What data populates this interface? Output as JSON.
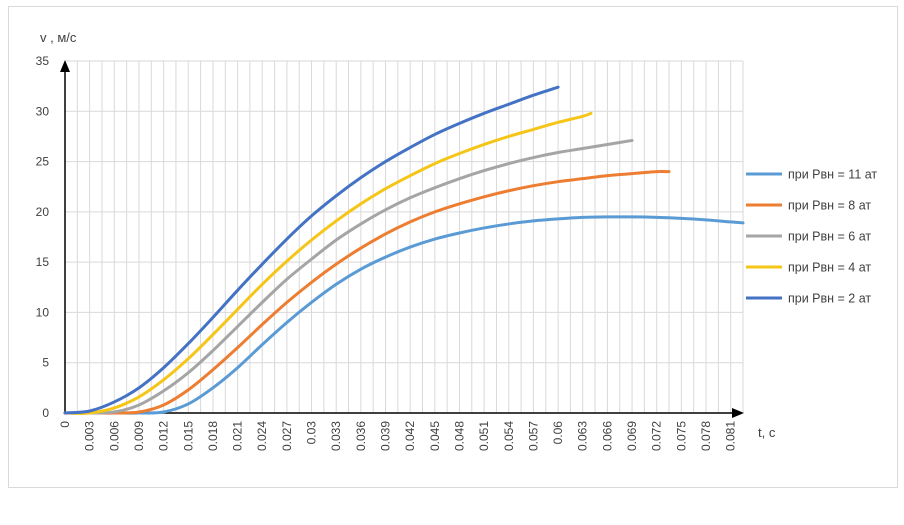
{
  "chart_data": {
    "type": "line",
    "title": "",
    "xlabel": "t, с",
    "ylabel": "v , м/с",
    "ylim": [
      0,
      35
    ],
    "xlim": [
      0,
      0.0825
    ],
    "y_ticks": [
      "0",
      "5",
      "10",
      "15",
      "20",
      "25",
      "30",
      "35"
    ],
    "x_ticks": [
      "0",
      "0.003",
      "0.006",
      "0.009",
      "0.012",
      "0.015",
      "0.018",
      "0.021",
      "0.024",
      "0.027",
      "0.03",
      "0.033",
      "0.036",
      "0.039",
      "0.042",
      "0.045",
      "0.048",
      "0.051",
      "0.054",
      "0.057",
      "0.06",
      "0.063",
      "0.066",
      "0.069",
      "0.072",
      "0.075",
      "0.078",
      "0.081"
    ],
    "grid": true,
    "legend_position": "right",
    "series": [
      {
        "name": "при Рвн = 11 ат",
        "color": "#5b9bd5",
        "x": [
          0,
          0.003,
          0.006,
          0.009,
          0.012,
          0.015,
          0.018,
          0.021,
          0.024,
          0.027,
          0.03,
          0.033,
          0.036,
          0.039,
          0.042,
          0.045,
          0.048,
          0.051,
          0.054,
          0.057,
          0.06,
          0.063,
          0.066,
          0.069,
          0.072,
          0.075,
          0.078,
          0.081,
          0.0825
        ],
        "y": [
          0,
          0,
          0,
          0,
          0.1,
          0.9,
          2.5,
          4.5,
          6.8,
          9.0,
          11.0,
          12.8,
          14.3,
          15.5,
          16.5,
          17.3,
          17.9,
          18.4,
          18.8,
          19.1,
          19.3,
          19.45,
          19.5,
          19.5,
          19.45,
          19.35,
          19.2,
          19.0,
          18.9
        ]
      },
      {
        "name": "при Рвн = 8 ат",
        "color": "#ed7d31",
        "x": [
          0,
          0.003,
          0.006,
          0.009,
          0.012,
          0.015,
          0.018,
          0.021,
          0.024,
          0.027,
          0.03,
          0.033,
          0.036,
          0.039,
          0.042,
          0.045,
          0.048,
          0.051,
          0.054,
          0.057,
          0.06,
          0.063,
          0.066,
          0.069,
          0.072,
          0.0735
        ],
        "y": [
          0,
          0,
          0,
          0.1,
          0.8,
          2.3,
          4.3,
          6.5,
          8.8,
          11.0,
          13.0,
          14.8,
          16.4,
          17.8,
          19.0,
          20.0,
          20.8,
          21.5,
          22.1,
          22.6,
          23.0,
          23.3,
          23.6,
          23.8,
          24.0,
          24.0
        ]
      },
      {
        "name": "при Рвн = 6 ат",
        "color": "#a5a5a5",
        "x": [
          0,
          0.003,
          0.006,
          0.009,
          0.012,
          0.015,
          0.018,
          0.021,
          0.024,
          0.027,
          0.03,
          0.033,
          0.036,
          0.039,
          0.042,
          0.045,
          0.048,
          0.051,
          0.054,
          0.057,
          0.06,
          0.063,
          0.066,
          0.069
        ],
        "y": [
          0,
          0,
          0.1,
          0.8,
          2.2,
          4.0,
          6.2,
          8.6,
          11.0,
          13.3,
          15.3,
          17.2,
          18.8,
          20.2,
          21.4,
          22.4,
          23.3,
          24.1,
          24.8,
          25.4,
          25.9,
          26.3,
          26.7,
          27.1
        ]
      },
      {
        "name": "при Рвн = 4 ат",
        "color": "#f5c518",
        "x": [
          0,
          0.003,
          0.006,
          0.009,
          0.012,
          0.015,
          0.018,
          0.021,
          0.024,
          0.027,
          0.03,
          0.033,
          0.036,
          0.039,
          0.042,
          0.045,
          0.048,
          0.051,
          0.054,
          0.057,
          0.06,
          0.063,
          0.064
        ],
        "y": [
          0,
          0,
          0.5,
          1.6,
          3.3,
          5.4,
          7.8,
          10.3,
          12.8,
          15.1,
          17.2,
          19.1,
          20.8,
          22.3,
          23.6,
          24.8,
          25.8,
          26.7,
          27.5,
          28.2,
          28.9,
          29.5,
          29.8
        ]
      },
      {
        "name": "при Рвн = 2 ат",
        "color": "#4472c4",
        "x": [
          0,
          0.003,
          0.006,
          0.009,
          0.012,
          0.015,
          0.018,
          0.021,
          0.024,
          0.027,
          0.03,
          0.033,
          0.036,
          0.039,
          0.042,
          0.045,
          0.048,
          0.051,
          0.054,
          0.057,
          0.06
        ],
        "y": [
          0,
          0.2,
          1.1,
          2.5,
          4.5,
          6.9,
          9.5,
          12.2,
          14.8,
          17.3,
          19.6,
          21.6,
          23.4,
          25.0,
          26.4,
          27.7,
          28.8,
          29.8,
          30.7,
          31.6,
          32.4
        ]
      }
    ]
  }
}
